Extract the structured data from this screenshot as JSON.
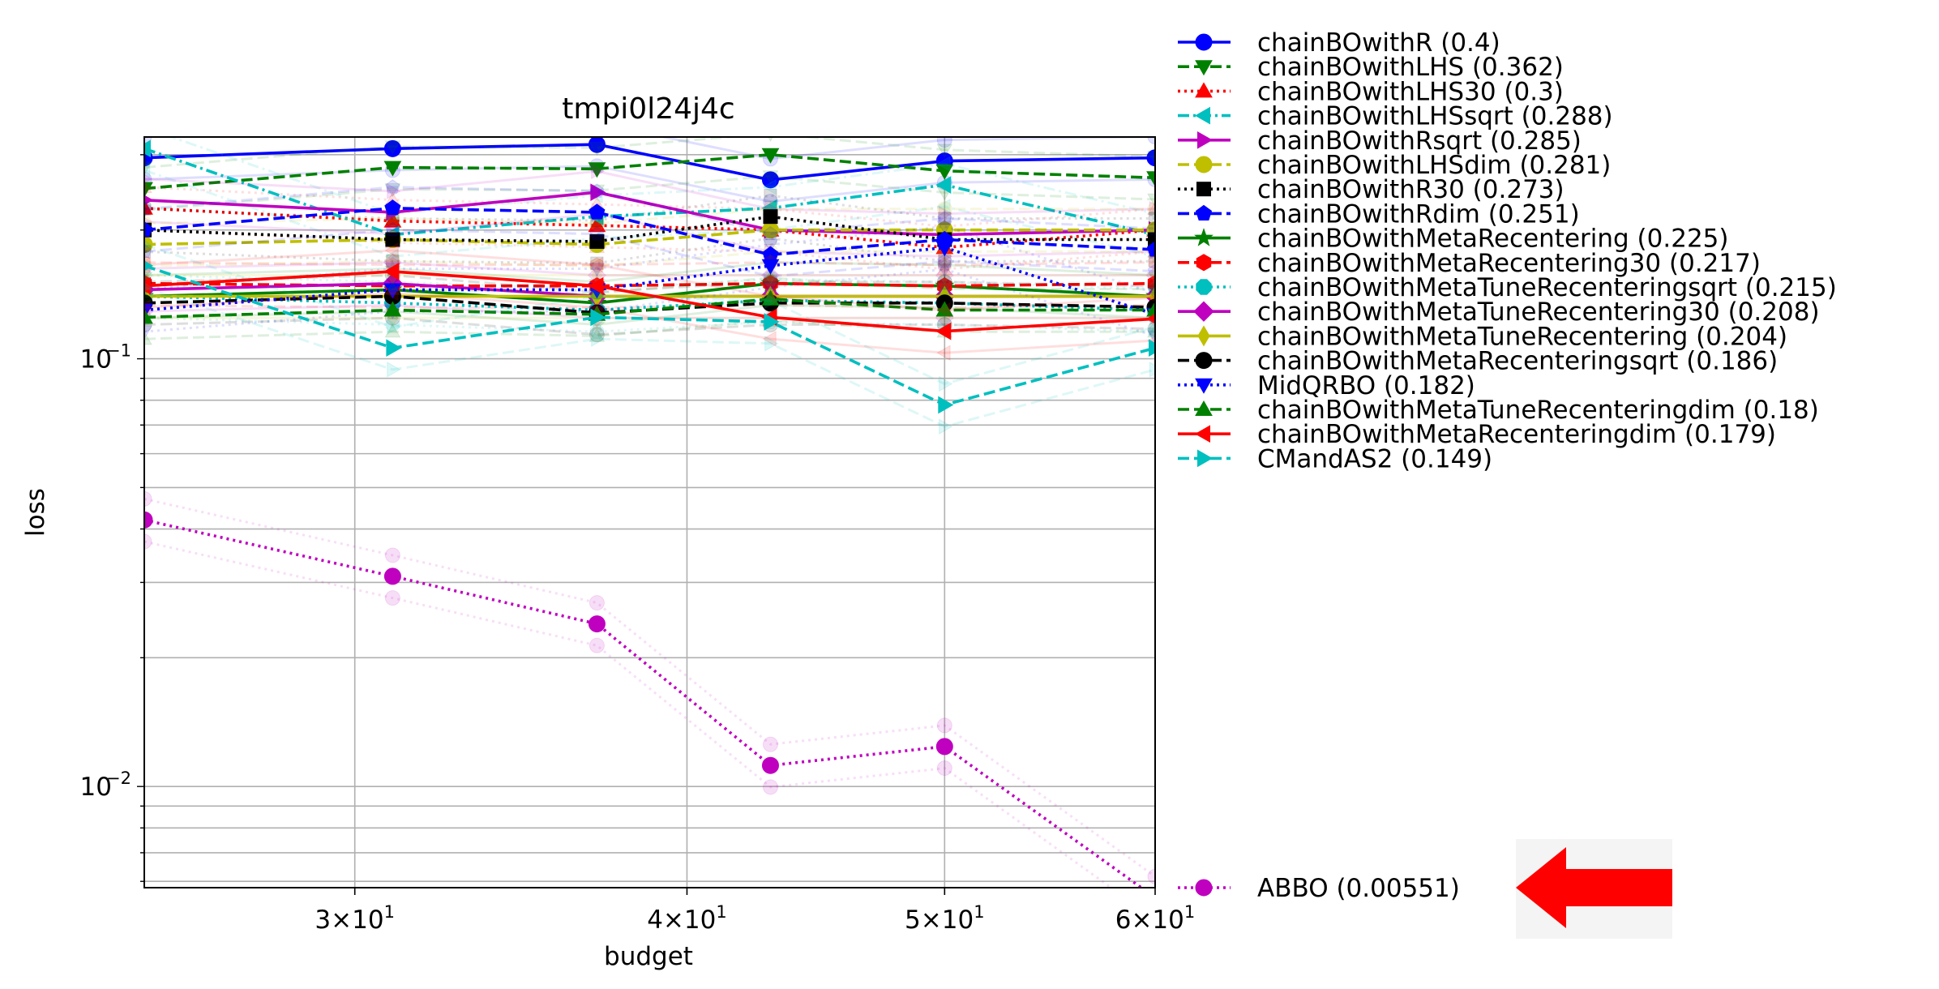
{
  "chart_data": {
    "type": "line",
    "title": "tmpi0l24j4c",
    "xlabel": "budget",
    "ylabel": "loss",
    "xscale": "log",
    "yscale": "log",
    "xlim": [
      25,
      60
    ],
    "ylim": [
      0.0058,
      0.33
    ],
    "xticks": [
      {
        "value": 30,
        "base": "3",
        "exp": "1"
      },
      {
        "value": 40,
        "base": "4",
        "exp": "1"
      },
      {
        "value": 50,
        "base": "5",
        "exp": "1"
      },
      {
        "value": 60,
        "base": "6",
        "exp": "1"
      }
    ],
    "yticks": [
      {
        "value": 0.1,
        "base": "10",
        "exp": "−1"
      },
      {
        "value": 0.01,
        "base": "10",
        "exp": "−2"
      }
    ],
    "grid": true,
    "legend_position": "right",
    "x": [
      25,
      31,
      37,
      43,
      50,
      60
    ],
    "series": [
      {
        "name": "chainBOwithR (0.4)",
        "color": "#0000ff",
        "dash": "solid",
        "marker": "circle",
        "values": [
          0.295,
          0.31,
          0.317,
          0.262,
          0.29,
          0.295
        ]
      },
      {
        "name": "chainBOwithLHS (0.362)",
        "color": "#008000",
        "dash": "dashed",
        "marker": "tri-down",
        "values": [
          0.25,
          0.28,
          0.278,
          0.3,
          0.275,
          0.265
        ]
      },
      {
        "name": "chainBOwithLHS30 (0.3)",
        "color": "#ff0000",
        "dash": "dotted",
        "marker": "tri-up",
        "values": [
          0.225,
          0.21,
          0.205,
          0.2,
          0.182,
          0.2
        ]
      },
      {
        "name": "chainBOwithLHSsqrt (0.288)",
        "color": "#00bfbf",
        "dash": "dashdot",
        "marker": "tri-left",
        "values": [
          0.31,
          0.195,
          0.215,
          0.225,
          0.255,
          0.195
        ]
      },
      {
        "name": "chainBOwithRsqrt (0.285)",
        "color": "#bf00bf",
        "dash": "solid",
        "marker": "tri-right",
        "values": [
          0.235,
          0.22,
          0.245,
          0.2,
          0.195,
          0.2
        ]
      },
      {
        "name": "chainBOwithLHSdim (0.281)",
        "color": "#bfbf00",
        "dash": "dashed",
        "marker": "circle",
        "values": [
          0.185,
          0.19,
          0.185,
          0.2,
          0.2,
          0.2
        ]
      },
      {
        "name": "chainBOwithR30 (0.273)",
        "color": "#000000",
        "dash": "dotted",
        "marker": "square",
        "values": [
          0.2,
          0.19,
          0.188,
          0.215,
          0.19,
          0.19
        ]
      },
      {
        "name": "chainBOwithRdim (0.251)",
        "color": "#0000ff",
        "dash": "dashed",
        "marker": "pentagon",
        "values": [
          0.2,
          0.225,
          0.22,
          0.175,
          0.19,
          0.18
        ]
      },
      {
        "name": "chainBOwithMetaRecentering (0.225)",
        "color": "#008000",
        "dash": "solid",
        "marker": "star",
        "values": [
          0.14,
          0.145,
          0.135,
          0.15,
          0.148,
          0.14
        ]
      },
      {
        "name": "chainBOwithMetaRecentering30 (0.217)",
        "color": "#ff0000",
        "dash": "dashed",
        "marker": "hexagon",
        "values": [
          0.15,
          0.148,
          0.148,
          0.15,
          0.148,
          0.15
        ]
      },
      {
        "name": "chainBOwithMetaTuneRecenteringsqrt (0.215)",
        "color": "#00bfbf",
        "dash": "dotted",
        "marker": "octagon",
        "values": [
          0.14,
          0.135,
          0.13,
          0.137,
          0.135,
          0.13
        ]
      },
      {
        "name": "chainBOwithMetaTuneRecentering30 (0.208)",
        "color": "#bf00bf",
        "dash": "solid",
        "marker": "diamond",
        "values": [
          0.145,
          0.15,
          0.14,
          0.14,
          0.14,
          0.14
        ]
      },
      {
        "name": "chainBOwithMetaTuneRecentering (0.204)",
        "color": "#bfbf00",
        "dash": "solid",
        "marker": "thin-diamond",
        "values": [
          0.14,
          0.14,
          0.14,
          0.14,
          0.14,
          0.14
        ]
      },
      {
        "name": "chainBOwithMetaRecenteringsqrt (0.186)",
        "color": "#000000",
        "dash": "dashed",
        "marker": "circle",
        "values": [
          0.135,
          0.14,
          0.128,
          0.135,
          0.135,
          0.132
        ]
      },
      {
        "name": "MidQRBO (0.182)",
        "color": "#0000ff",
        "dash": "dotted",
        "marker": "tri-down",
        "values": [
          0.13,
          0.145,
          0.145,
          0.165,
          0.182,
          0.127
        ]
      },
      {
        "name": "chainBOwithMetaTuneRecenteringdim (0.18)",
        "color": "#008000",
        "dash": "dashed",
        "marker": "tri-up",
        "values": [
          0.125,
          0.13,
          0.127,
          0.138,
          0.13,
          0.13
        ]
      },
      {
        "name": "chainBOwithMetaRecenteringdim (0.179)",
        "color": "#ff0000",
        "dash": "solid",
        "marker": "tri-left",
        "values": [
          0.148,
          0.16,
          0.148,
          0.125,
          0.116,
          0.124
        ]
      },
      {
        "name": "CMandAS2 (0.149)",
        "color": "#00bfbf",
        "dash": "dashed",
        "marker": "tri-right",
        "values": [
          0.165,
          0.106,
          0.125,
          0.122,
          0.078,
          0.106
        ]
      },
      {
        "name": "ABBO (0.00551)",
        "color": "#bf00bf",
        "dash": "dotted",
        "marker": "circle",
        "values": [
          0.042,
          0.031,
          0.024,
          0.0112,
          0.0124,
          0.0055
        ]
      }
    ],
    "highlight_series": "ABBO (0.00551)"
  }
}
